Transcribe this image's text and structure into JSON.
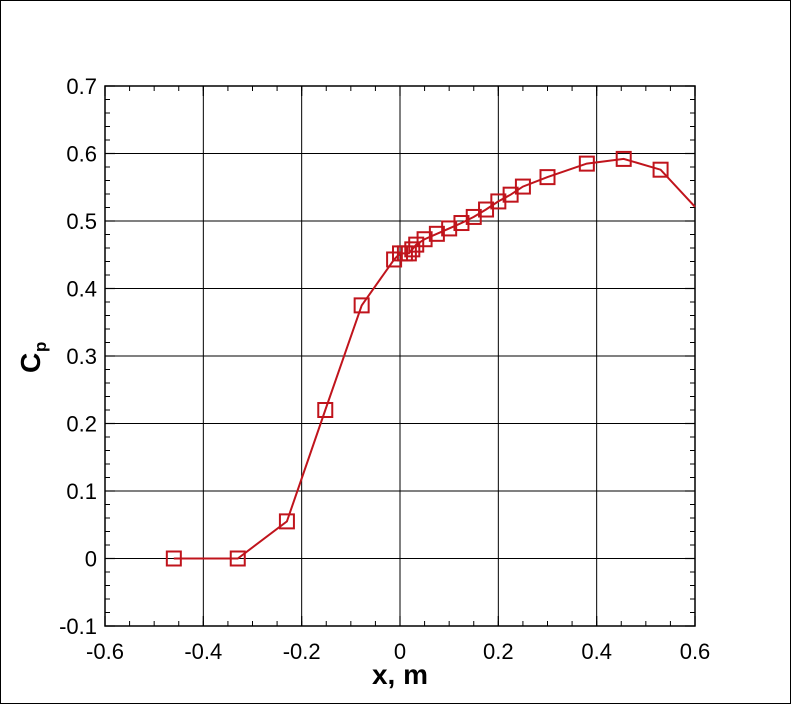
{
  "chart_data": {
    "type": "line",
    "title": "",
    "xlabel": "x, m",
    "ylabel_main": "C",
    "ylabel_sub": "p",
    "xlim": [
      -0.6,
      0.6
    ],
    "ylim": [
      -0.1,
      0.7
    ],
    "x_ticks": [
      -0.6,
      -0.4,
      -0.2,
      0,
      0.2,
      0.4,
      0.6
    ],
    "y_ticks": [
      -0.1,
      0,
      0.1,
      0.2,
      0.3,
      0.4,
      0.5,
      0.6,
      0.7
    ],
    "x_tick_labels": [
      "-0.6",
      "-0.4",
      "-0.2",
      "0",
      "0.2",
      "0.4",
      "0.6"
    ],
    "y_tick_labels": [
      "-0.1",
      "0",
      "0.1",
      "0.2",
      "0.3",
      "0.4",
      "0.5",
      "0.6",
      "0.7"
    ],
    "grid": true,
    "marker": "square",
    "color": "#c0141c",
    "series": [
      {
        "x": [
          -0.46,
          -0.33,
          -0.23,
          -0.152,
          -0.078,
          -0.012,
          0.0,
          0.01,
          0.018,
          0.025,
          0.033,
          0.05,
          0.075,
          0.1,
          0.125,
          0.15,
          0.175,
          0.2,
          0.225,
          0.25,
          0.3,
          0.38,
          0.455,
          0.53,
          0.6
        ],
        "y": [
          0.0,
          0.0,
          0.055,
          0.22,
          0.375,
          0.443,
          0.452,
          0.452,
          0.452,
          0.458,
          0.465,
          0.473,
          0.481,
          0.489,
          0.497,
          0.506,
          0.517,
          0.529,
          0.539,
          0.551,
          0.565,
          0.585,
          0.592,
          0.576,
          0.521
        ],
        "markers": [
          true,
          true,
          true,
          true,
          true,
          true,
          true,
          true,
          true,
          true,
          true,
          true,
          true,
          true,
          true,
          true,
          true,
          true,
          true,
          true,
          true,
          true,
          true,
          true,
          false
        ]
      }
    ]
  }
}
